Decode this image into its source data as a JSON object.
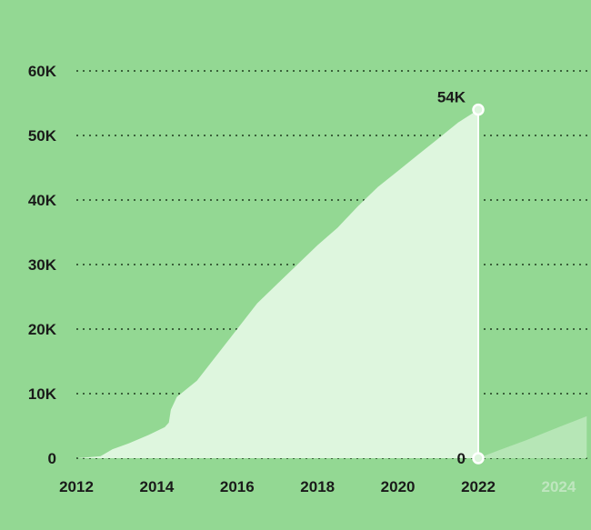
{
  "chart_data": {
    "type": "area",
    "title": "",
    "xlabel": "",
    "ylabel": "",
    "ylim": [
      0,
      60000
    ],
    "xlim": [
      2012,
      2024.7
    ],
    "grid": true,
    "yticks": [
      {
        "value": 0,
        "label": "0"
      },
      {
        "value": 10000,
        "label": "10K"
      },
      {
        "value": 20000,
        "label": "20K"
      },
      {
        "value": 30000,
        "label": "30K"
      },
      {
        "value": 40000,
        "label": "40K"
      },
      {
        "value": 50000,
        "label": "50K"
      },
      {
        "value": 60000,
        "label": "60K"
      }
    ],
    "xticks": [
      {
        "value": 2012,
        "label": "2012",
        "future": false
      },
      {
        "value": 2014,
        "label": "2014",
        "future": false
      },
      {
        "value": 2016,
        "label": "2016",
        "future": false
      },
      {
        "value": 2018,
        "label": "2018",
        "future": false
      },
      {
        "value": 2020,
        "label": "2020",
        "future": false
      },
      {
        "value": 2022,
        "label": "2022",
        "future": false
      },
      {
        "value": 2024,
        "label": "2024",
        "future": true
      }
    ],
    "series": [
      {
        "points": [
          [
            2012.0,
            0
          ],
          [
            2012.6,
            300
          ],
          [
            2012.9,
            1400
          ],
          [
            2013.3,
            2300
          ],
          [
            2013.8,
            3600
          ],
          [
            2014.2,
            4800
          ],
          [
            2014.3,
            5500
          ],
          [
            2014.35,
            7500
          ],
          [
            2014.5,
            9500
          ],
          [
            2015.0,
            12000
          ],
          [
            2015.5,
            16000
          ],
          [
            2016.0,
            20000
          ],
          [
            2016.5,
            24000
          ],
          [
            2017.0,
            27000
          ],
          [
            2017.5,
            30000
          ],
          [
            2018.0,
            33000
          ],
          [
            2018.5,
            35700
          ],
          [
            2019.0,
            39000
          ],
          [
            2019.5,
            42000
          ],
          [
            2020.0,
            44500
          ],
          [
            2020.5,
            47000
          ],
          [
            2021.0,
            49500
          ],
          [
            2021.5,
            52000
          ],
          [
            2022.0,
            54000
          ]
        ]
      },
      {
        "points": [
          [
            2022.0,
            0
          ],
          [
            2022.5,
            1200
          ],
          [
            2023.2,
            2800
          ],
          [
            2024.0,
            4800
          ],
          [
            2024.7,
            6500
          ]
        ]
      }
    ],
    "annotations": [
      {
        "x": 2022,
        "y": 54000,
        "label": "54K"
      },
      {
        "x": 2022,
        "y": 0,
        "label": "0"
      }
    ]
  },
  "colors": {
    "background": "#93d893",
    "area_fill": "#def6de",
    "projection_fill": "#b6e6b6",
    "text": "#1a1a1a",
    "future_tick": "#bfe6bf",
    "marker": "#ffffff"
  }
}
